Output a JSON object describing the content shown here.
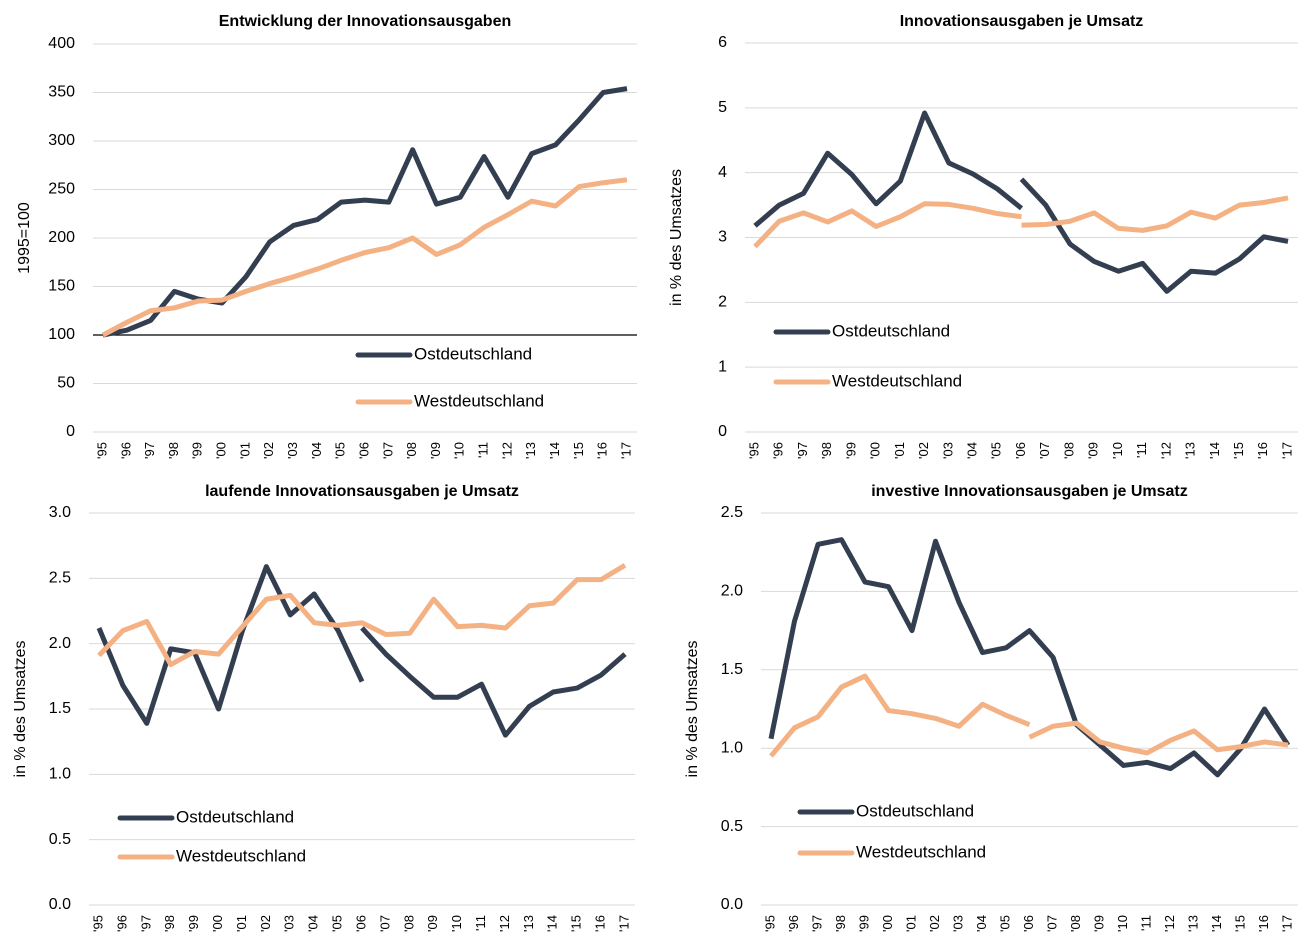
{
  "chart_data": [
    {
      "type": "line",
      "title": "Entwicklung der Innovationsausgaben",
      "y_label": "1995=100",
      "categories": [
        "'95",
        "'96",
        "'97",
        "'98",
        "'99",
        "'00",
        "'01",
        "'02",
        "'03",
        "'04",
        "'05",
        "'06",
        "'07",
        "'08",
        "'09",
        "'10",
        "'11",
        "'12",
        "'13",
        "'14",
        "'15",
        "'16",
        "'17"
      ],
      "ylim": [
        0,
        400
      ],
      "yticks": [
        0,
        50,
        100,
        150,
        200,
        250,
        300,
        350,
        400
      ],
      "grid": true,
      "axis_line_at": 100,
      "series": [
        {
          "name": "Ostdeutschland",
          "color": "#333f50",
          "segments": [
            [
              100,
              105,
              115,
              145,
              137,
              133,
              160,
              196,
              213,
              219,
              237,
              239,
              237,
              291,
              235,
              242,
              284,
              242,
              287,
              296,
              322,
              350,
              354
            ]
          ]
        },
        {
          "name": "Westdeutschland",
          "color": "#f4b183",
          "segments": [
            [
              100,
              113,
              125,
              128,
              135,
              136,
              145,
              153,
              160,
              168,
              177,
              185,
              190,
              200,
              183,
              193,
              211,
              224,
              238,
              233,
              253,
              257,
              260
            ]
          ]
        }
      ]
    },
    {
      "type": "line",
      "title": "Innovationsausgaben je Umsatz",
      "y_label": "in % des Umsatzes",
      "categories": [
        "'95",
        "'96",
        "'97",
        "'98",
        "'99",
        "'00",
        "'01",
        "'02",
        "'03",
        "'04",
        "'05",
        "'06",
        "'07",
        "'08",
        "'09",
        "'10",
        "'11",
        "'12",
        "'13",
        "'14",
        "'15",
        "'16",
        "'17"
      ],
      "ylim": [
        0,
        6
      ],
      "yticks": [
        0,
        1,
        2,
        3,
        4,
        5,
        6
      ],
      "grid": true,
      "series": [
        {
          "name": "Ostdeutschland",
          "color": "#333f50",
          "segments": [
            [
              3.18,
              3.5,
              3.68,
              4.3,
              3.97,
              3.52,
              3.87,
              4.92,
              4.15,
              3.98,
              3.75,
              3.45,
              null,
              null,
              null,
              null,
              null,
              null,
              null,
              null,
              null,
              null,
              null
            ],
            [
              null,
              null,
              null,
              null,
              null,
              null,
              null,
              null,
              null,
              null,
              null,
              3.9,
              3.5,
              2.9,
              2.63,
              2.48,
              2.6,
              2.17,
              2.48,
              2.45,
              2.67,
              3.01,
              2.94
            ]
          ]
        },
        {
          "name": "Westdeutschland",
          "color": "#f4b183",
          "segments": [
            [
              2.86,
              3.25,
              3.38,
              3.24,
              3.41,
              3.17,
              3.32,
              3.52,
              3.51,
              3.45,
              3.37,
              3.32,
              null,
              null,
              null,
              null,
              null,
              null,
              null,
              null,
              null,
              null,
              null
            ],
            [
              null,
              null,
              null,
              null,
              null,
              null,
              null,
              null,
              null,
              null,
              null,
              3.19,
              3.2,
              3.25,
              3.38,
              3.14,
              3.11,
              3.18,
              3.39,
              3.3,
              3.5,
              3.54,
              3.61
            ]
          ]
        }
      ]
    },
    {
      "type": "line",
      "title": "laufende Innovationsausgaben je Umsatz",
      "y_label": "in % des Umsatzes",
      "categories": [
        "'95",
        "'96",
        "'97",
        "'98",
        "'99",
        "'00",
        "'01",
        "'02",
        "'03",
        "'04",
        "'05",
        "'06",
        "'07",
        "'08",
        "'09",
        "'10",
        "'11",
        "'12",
        "'13",
        "'14",
        "'15",
        "'16",
        "'17"
      ],
      "ylim": [
        0,
        3
      ],
      "yticks": [
        {
          "value": 0,
          "label": "0.0"
        },
        0.5,
        {
          "value": 1,
          "label": "1.0"
        },
        1.5,
        {
          "value": 2,
          "label": "2.0"
        },
        2.5,
        {
          "value": 3,
          "label": "3.0"
        }
      ],
      "grid": true,
      "series": [
        {
          "name": "Ostdeutschland",
          "color": "#333f50",
          "segments": [
            [
              2.12,
              1.68,
              1.39,
              1.96,
              1.93,
              1.5,
              2.1,
              2.59,
              2.22,
              2.38,
              2.1,
              1.71,
              null,
              null,
              null,
              null,
              null,
              null,
              null,
              null,
              null,
              null,
              null
            ],
            [
              null,
              null,
              null,
              null,
              null,
              null,
              null,
              null,
              null,
              null,
              null,
              2.12,
              1.92,
              1.75,
              1.59,
              1.59,
              1.69,
              1.3,
              1.52,
              1.63,
              1.66,
              1.76,
              1.92
            ]
          ]
        },
        {
          "name": "Westdeutschland",
          "color": "#f4b183",
          "segments": [
            [
              1.91,
              2.1,
              2.17,
              1.84,
              1.94,
              1.92,
              2.13,
              2.34,
              2.37,
              2.16,
              2.14,
              2.16,
              2.07,
              2.08,
              2.34,
              2.13,
              2.14,
              2.12,
              2.29,
              2.31,
              2.49,
              2.49,
              2.6
            ]
          ]
        }
      ]
    },
    {
      "type": "line",
      "title": "investive Innovationsausgaben je Umsatz",
      "y_label": "in % des Umsatzes",
      "categories": [
        "'95",
        "'96",
        "'97",
        "'98",
        "'99",
        "'00",
        "'01",
        "'02",
        "'03",
        "'04",
        "'05",
        "'06",
        "'07",
        "'08",
        "'09",
        "'10",
        "'11",
        "'12",
        "'13",
        "'14",
        "'15",
        "'16",
        "'17"
      ],
      "ylim": [
        0,
        2.5
      ],
      "yticks": [
        {
          "value": 0,
          "label": "0.0"
        },
        0.5,
        {
          "value": 1,
          "label": "1.0"
        },
        1.5,
        {
          "value": 2,
          "label": "2.0"
        },
        2.5
      ],
      "grid": true,
      "series": [
        {
          "name": "Ostdeutschland",
          "color": "#333f50",
          "segments": [
            [
              1.06,
              1.81,
              2.3,
              2.33,
              2.06,
              2.03,
              1.75,
              2.32,
              1.93,
              1.61,
              1.64,
              1.75,
              1.58,
              1.15,
              1.02,
              0.89,
              0.91,
              0.87,
              0.97,
              0.83,
              1.0,
              1.25,
              1.02
            ]
          ]
        },
        {
          "name": "Westdeutschland",
          "color": "#f4b183",
          "segments": [
            [
              0.95,
              1.13,
              1.2,
              1.39,
              1.46,
              1.24,
              1.22,
              1.19,
              1.14,
              1.28,
              1.21,
              1.15,
              null,
              null,
              null,
              null,
              null,
              null,
              null,
              null,
              null,
              null,
              null
            ],
            [
              null,
              null,
              null,
              null,
              null,
              null,
              null,
              null,
              null,
              null,
              null,
              1.07,
              1.14,
              1.16,
              1.04,
              1.0,
              0.97,
              1.05,
              1.11,
              0.99,
              1.01,
              1.04,
              1.02
            ]
          ]
        }
      ]
    }
  ]
}
